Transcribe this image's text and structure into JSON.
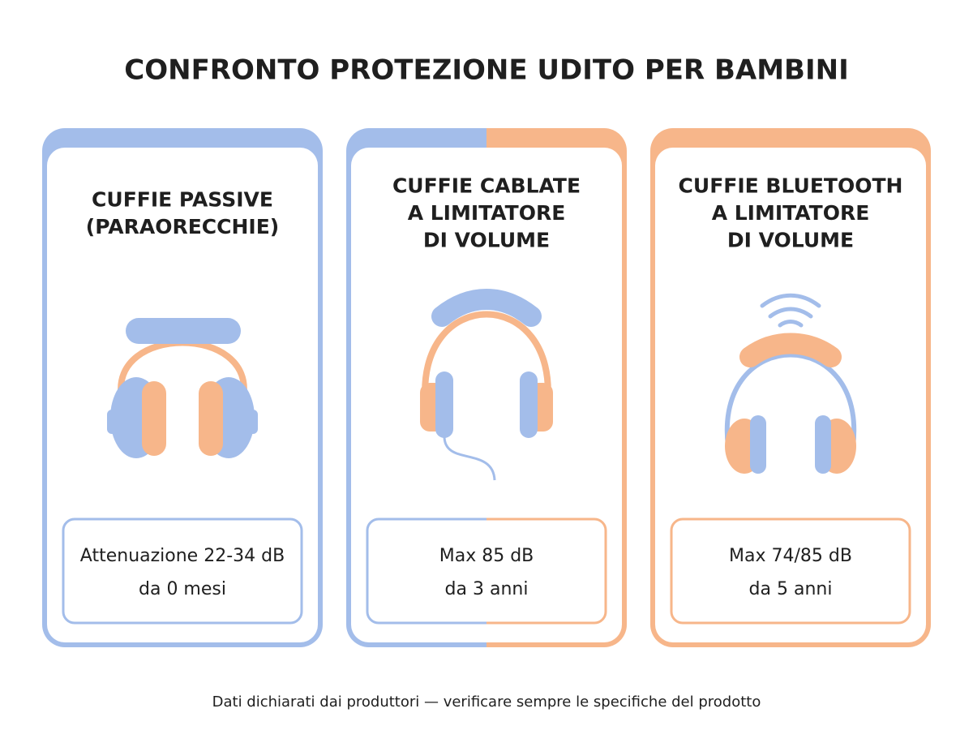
{
  "title": "CONFRONTO PROTEZIONE UDITO PER BAMBINI",
  "cards": [
    {
      "title": [
        "CUFFIE PASSIVE",
        "(PARAORECCHIE)"
      ],
      "details": [
        "Attenuazione 22-34 dB",
        "da 0 mesi"
      ]
    },
    {
      "title": [
        "CUFFIE CABLATE",
        "A LIMITATORE",
        "DI VOLUME"
      ],
      "details": [
        "Max 85 dB",
        "da 3 anni"
      ]
    },
    {
      "title": [
        "CUFFIE BLUETOOTH",
        "A LIMITATORE",
        "DI VOLUME"
      ],
      "details": [
        "Max 74/85 dB",
        "da 5 anni"
      ]
    }
  ],
  "footer": "Dati dichiarati dai produttori — verificare sempre le specifiche del prodotto"
}
